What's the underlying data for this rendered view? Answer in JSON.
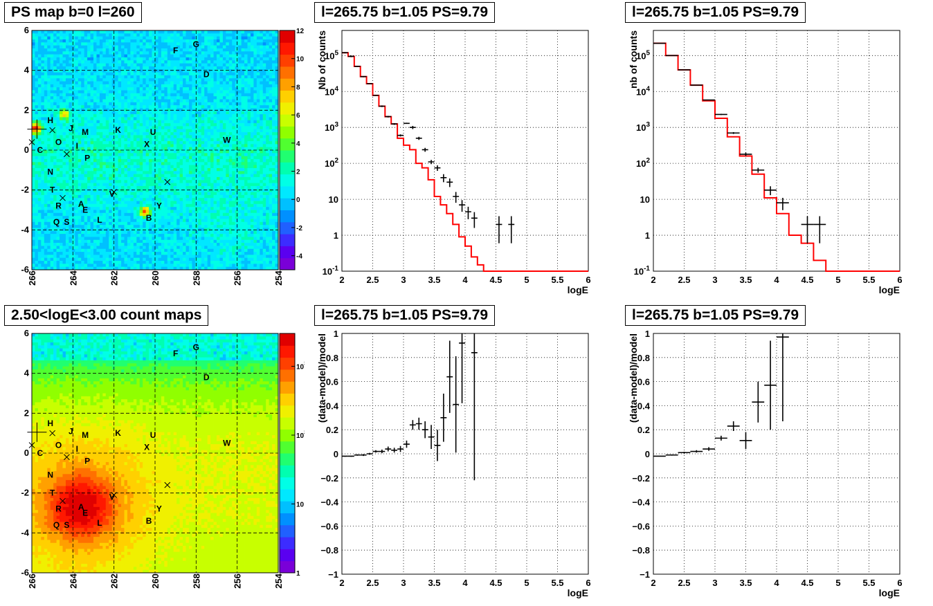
{
  "map_labels": [
    {
      "t": "A",
      "l": 263.6,
      "b": -2.7
    },
    {
      "t": "B",
      "l": 260.3,
      "b": -3.4
    },
    {
      "t": "C",
      "l": 265.6,
      "b": 0.0
    },
    {
      "t": "D",
      "l": 257.5,
      "b": 3.8
    },
    {
      "t": "E",
      "l": 263.4,
      "b": -3.0
    },
    {
      "t": "F",
      "l": 259.0,
      "b": 5.0
    },
    {
      "t": "G",
      "l": 258.0,
      "b": 5.3
    },
    {
      "t": "H",
      "l": 265.1,
      "b": 1.5
    },
    {
      "t": "I",
      "l": 263.8,
      "b": 0.2
    },
    {
      "t": "J",
      "l": 264.1,
      "b": 1.1
    },
    {
      "t": "K",
      "l": 261.8,
      "b": 1.0
    },
    {
      "t": "L",
      "l": 262.7,
      "b": -3.5
    },
    {
      "t": "M",
      "l": 263.4,
      "b": 0.9
    },
    {
      "t": "N",
      "l": 265.1,
      "b": -1.1
    },
    {
      "t": "O",
      "l": 264.7,
      "b": 0.4
    },
    {
      "t": "P",
      "l": 263.3,
      "b": -0.4
    },
    {
      "t": "Q",
      "l": 264.8,
      "b": -3.6
    },
    {
      "t": "R",
      "l": 264.7,
      "b": -2.8
    },
    {
      "t": "S",
      "l": 264.3,
      "b": -3.6
    },
    {
      "t": "T",
      "l": 265.0,
      "b": -2.0
    },
    {
      "t": "U",
      "l": 260.1,
      "b": 0.9
    },
    {
      "t": "V",
      "l": 262.1,
      "b": -2.2
    },
    {
      "t": "W",
      "l": 256.5,
      "b": 0.5
    },
    {
      "t": "X",
      "l": 260.4,
      "b": 0.3
    },
    {
      "t": "Y",
      "l": 259.8,
      "b": -2.8
    }
  ],
  "map_crosses": [
    {
      "l": 265.0,
      "b": 1.0
    },
    {
      "l": 264.3,
      "b": -0.2
    },
    {
      "l": 264.5,
      "b": -2.4
    },
    {
      "l": 262.0,
      "b": -2.1
    },
    {
      "l": 259.4,
      "b": -1.6
    },
    {
      "l": 266.0,
      "b": 0.4
    }
  ],
  "chart_data": [
    {
      "type": "heatmap",
      "title": "PS map b=0 l=260",
      "xlim": [
        266,
        254
      ],
      "ylim": [
        -6,
        6
      ],
      "xticks": [
        "266",
        "264",
        "262",
        "260",
        "258",
        "256",
        "254"
      ],
      "yticks": [
        "-6",
        "-4",
        "-2",
        "0",
        "2",
        "4",
        "6"
      ],
      "colorbar": {
        "min": -5,
        "max": 12,
        "ticks": [
          "12",
          "10",
          "8",
          "6",
          "4",
          "2",
          "0",
          "-2",
          "-4"
        ],
        "scale": "linear"
      },
      "hotspots": [
        {
          "l": 265.8,
          "b": 1.1,
          "v": 10
        },
        {
          "l": 264.4,
          "b": 1.8,
          "v": 7
        },
        {
          "l": 260.5,
          "b": -3.1,
          "v": 9
        }
      ],
      "source_marker": {
        "l": 265.75,
        "b": 1.05
      }
    },
    {
      "type": "line",
      "title": "l=265.75 b=1.05 PS=9.79",
      "xlabel": "logE",
      "ylabel": "Nb of counts",
      "xlim": [
        2,
        6
      ],
      "ylim": [
        0.1,
        500000
      ],
      "yscale": "log",
      "xticks": [
        "2",
        "2.5",
        "3",
        "3.5",
        "4",
        "4.5",
        "5",
        "5.5",
        "6"
      ],
      "yticks": [
        "10^{-1}",
        "1",
        "10",
        "10^{2}",
        "10^{3}",
        "10^{4}",
        "10^{5}"
      ],
      "model_step": {
        "name": "model",
        "color": "#ff0000",
        "bin_width": 0.1,
        "x0": 2.0,
        "values": [
          120000,
          95000,
          50000,
          26000,
          16500,
          7800,
          3900,
          2000,
          1250,
          500,
          320,
          240,
          100,
          75,
          35,
          12,
          7,
          4,
          2,
          0.9,
          0.5,
          0.25,
          0.15,
          0.1,
          0.1,
          0.1,
          0.1,
          0.1,
          0.1,
          0.1,
          0.1,
          0.1,
          0.1,
          0.1,
          0.1,
          0.1,
          0.1,
          0.1,
          0.1,
          0.1
        ]
      },
      "data_points": {
        "name": "data",
        "x_half_width": 0.05,
        "x": [
          2.05,
          2.15,
          2.25,
          2.35,
          2.45,
          2.55,
          2.65,
          2.75,
          2.85,
          2.95,
          3.05,
          3.15,
          3.25,
          3.35,
          3.45,
          3.55,
          3.65,
          3.75,
          3.85,
          3.95,
          4.05,
          4.15,
          4.55,
          4.75
        ],
        "y": [
          120000,
          95000,
          50000,
          26000,
          16500,
          7800,
          3900,
          2000,
          1250,
          600,
          1300,
          1000,
          500,
          240,
          110,
          75,
          40,
          30,
          12,
          7,
          4.5,
          3,
          2,
          2
        ],
        "y_lo": [
          115000,
          90000,
          48000,
          25000,
          16000,
          7500,
          3700,
          1900,
          1180,
          560,
          1250,
          900,
          450,
          210,
          95,
          62,
          30,
          22,
          8,
          4.5,
          2.8,
          1.6,
          0.6,
          0.6
        ],
        "y_hi": [
          125000,
          100000,
          52000,
          27000,
          17000,
          8100,
          4100,
          2100,
          1320,
          640,
          1350,
          1100,
          550,
          270,
          125,
          88,
          50,
          38,
          16,
          9.5,
          6.2,
          4.4,
          3.4,
          3.4
        ]
      }
    },
    {
      "type": "line",
      "title": "l=265.75 b=1.05 PS=9.79",
      "xlabel": "logE",
      "ylabel": "nb of counts",
      "xlim": [
        2,
        6
      ],
      "ylim": [
        0.1,
        500000
      ],
      "yscale": "log",
      "xticks": [
        "2",
        "2.5",
        "3",
        "3.5",
        "4",
        "4.5",
        "5",
        "5.5",
        "6"
      ],
      "yticks": [
        "10^{-1}",
        "1",
        "10",
        "10^{2}",
        "10^{3}",
        "10^{4}",
        "10^{5}"
      ],
      "model_step": {
        "name": "model",
        "color": "#ff0000",
        "bin_width": 0.2,
        "x0": 2.0,
        "values": [
          220000,
          100000,
          40000,
          15000,
          5500,
          1800,
          550,
          160,
          50,
          11,
          4,
          1,
          0.6,
          0.2,
          0.1,
          0.1,
          0.1,
          0.1,
          0.1,
          0.1
        ]
      },
      "data_points": {
        "name": "data",
        "x_half_width": 0.1,
        "x": [
          2.1,
          2.3,
          2.5,
          2.7,
          2.9,
          3.1,
          3.3,
          3.5,
          3.7,
          3.9,
          4.1,
          4.5,
          4.7
        ],
        "y": [
          220000,
          100000,
          40000,
          15000,
          5800,
          2300,
          700,
          180,
          65,
          18,
          8,
          2,
          2
        ],
        "y_lo": [
          215000,
          98000,
          39000,
          14500,
          5600,
          2200,
          660,
          160,
          55,
          13,
          5,
          0.6,
          0.6
        ],
        "y_hi": [
          225000,
          102000,
          41000,
          15500,
          6000,
          2400,
          740,
          200,
          75,
          23,
          11,
          3.4,
          3.4
        ]
      }
    },
    {
      "type": "heatmap",
      "title": "2.50<logE<3.00 count maps",
      "xlim": [
        266,
        254
      ],
      "ylim": [
        -6,
        6
      ],
      "xticks": [
        "266",
        "264",
        "262",
        "260",
        "258",
        "256",
        "254"
      ],
      "yticks": [
        "-6",
        "-4",
        "-2",
        "0",
        "2",
        "4",
        "6"
      ],
      "colorbar": {
        "min": 1,
        "max": 3000,
        "scale": "log",
        "ticks": [
          "10^{3}",
          "10^{2}",
          "10",
          "1"
        ]
      },
      "hotspots": [
        {
          "l": 263.6,
          "b": -2.7,
          "v": 2500
        }
      ],
      "source_marker": {
        "l": 265.75,
        "b": 1.05
      }
    },
    {
      "type": "scatter",
      "title": "l=265.75 b=1.05 PS=9.79",
      "xlabel": "logE",
      "ylabel": "(data-model)/model",
      "xlim": [
        2,
        6
      ],
      "ylim": [
        -1,
        1
      ],
      "xticks": [
        "2",
        "2.5",
        "3",
        "3.5",
        "4",
        "4.5",
        "5",
        "5.5",
        "6"
      ],
      "yticks": [
        "1",
        "0.8",
        "0.6",
        "0.4",
        "0.2",
        "0",
        "-0.2",
        "-0.4",
        "-0.6",
        "-0.8",
        "-1"
      ],
      "x_half_width": 0.05,
      "x": [
        2.05,
        2.15,
        2.25,
        2.35,
        2.45,
        2.55,
        2.65,
        2.75,
        2.85,
        2.95,
        3.05,
        3.15,
        3.25,
        3.35,
        3.45,
        3.55,
        3.65,
        3.75,
        3.85,
        3.95,
        4.15
      ],
      "y": [
        -0.02,
        -0.02,
        -0.01,
        -0.01,
        0.0,
        0.02,
        0.02,
        0.04,
        0.03,
        0.04,
        0.08,
        0.24,
        0.25,
        0.2,
        0.14,
        0.07,
        0.3,
        0.64,
        0.41,
        0.92,
        0.84
      ],
      "y_err": [
        0.005,
        0.005,
        0.006,
        0.008,
        0.008,
        0.01,
        0.015,
        0.02,
        0.02,
        0.025,
        0.03,
        0.04,
        0.05,
        0.07,
        0.1,
        0.13,
        0.2,
        0.3,
        0.4,
        0.5,
        1.06
      ]
    },
    {
      "type": "scatter",
      "title": "l=265.75 b=1.05 PS=9.79",
      "xlabel": "logE",
      "ylabel": "(data-model)/model",
      "xlim": [
        2,
        6
      ],
      "ylim": [
        -1,
        1
      ],
      "xticks": [
        "2",
        "2.5",
        "3",
        "3.5",
        "4",
        "4.5",
        "5",
        "5.5",
        "6"
      ],
      "yticks": [
        "1",
        "0.8",
        "0.6",
        "0.4",
        "0.2",
        "0",
        "-0.2",
        "-0.4",
        "-0.6",
        "-0.8",
        "-1"
      ],
      "x_half_width": 0.1,
      "x": [
        2.1,
        2.3,
        2.5,
        2.7,
        2.9,
        3.1,
        3.3,
        3.5,
        3.7,
        3.9,
        4.1
      ],
      "y": [
        -0.02,
        -0.01,
        0.01,
        0.02,
        0.04,
        0.13,
        0.23,
        0.11,
        0.43,
        0.57,
        0.97
      ],
      "y_err": [
        0.004,
        0.005,
        0.007,
        0.01,
        0.015,
        0.02,
        0.04,
        0.07,
        0.17,
        0.37,
        0.7
      ]
    }
  ]
}
